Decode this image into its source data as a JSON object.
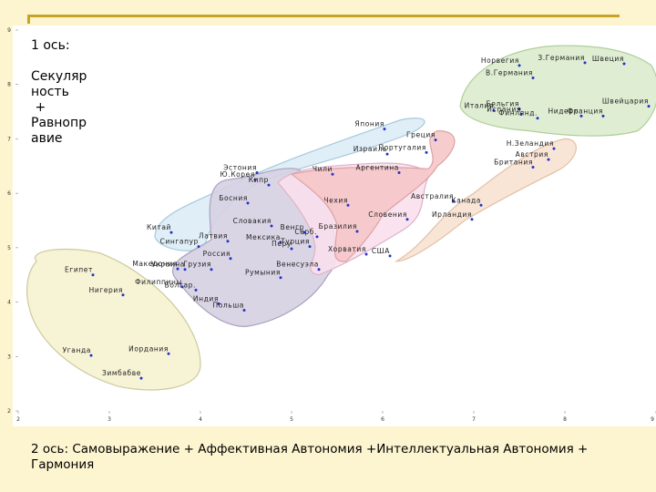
{
  "ylabel_text": "1 ось:\n\nСекуляр\nность\n +\nРавнопр\nавие",
  "xlabel_text": "2 ось: Самовыражение + Аффективная Автономия +Интеллектуальная Автономия + Гармония",
  "chart_data": {
    "type": "scatter",
    "xlim": [
      2,
      9
    ],
    "ylim": [
      2,
      9
    ],
    "xticks": [
      "2",
      "3",
      "4",
      "5",
      "6",
      "7",
      "8",
      "9"
    ],
    "yticks": [
      "2",
      "3",
      "4",
      "5",
      "6",
      "7",
      "8",
      "9"
    ],
    "grid": false,
    "point_color": "#2233cc",
    "points": [
      {
        "label": "Египет",
        "x": 2.82,
        "y": 4.5
      },
      {
        "label": "Нигерия",
        "x": 3.15,
        "y": 4.13
      },
      {
        "label": "Уганда",
        "x": 2.8,
        "y": 3.02
      },
      {
        "label": "Иордания",
        "x": 3.65,
        "y": 3.05
      },
      {
        "label": "Зимбабве",
        "x": 3.35,
        "y": 2.6
      },
      {
        "label": "Китай",
        "x": 3.68,
        "y": 5.28
      },
      {
        "label": "Сингапур",
        "x": 3.98,
        "y": 5.02
      },
      {
        "label": "Македония",
        "x": 3.75,
        "y": 4.61
      },
      {
        "label": "Украина",
        "x": 3.83,
        "y": 4.6
      },
      {
        "label": "Грузия",
        "x": 4.12,
        "y": 4.6
      },
      {
        "label": "Филиппины",
        "x": 3.8,
        "y": 4.28
      },
      {
        "label": "Болгар.",
        "x": 3.95,
        "y": 4.22
      },
      {
        "label": "Индия",
        "x": 4.2,
        "y": 3.97
      },
      {
        "label": "Польша",
        "x": 4.48,
        "y": 3.85
      },
      {
        "label": "Латвия",
        "x": 4.3,
        "y": 5.12
      },
      {
        "label": "Россия",
        "x": 4.33,
        "y": 4.8
      },
      {
        "label": "Эстония",
        "x": 4.62,
        "y": 6.38
      },
      {
        "label": "Ю.Корея",
        "x": 4.6,
        "y": 6.25
      },
      {
        "label": "Кипр",
        "x": 4.75,
        "y": 6.15
      },
      {
        "label": "Босния",
        "x": 4.52,
        "y": 5.82
      },
      {
        "label": "Словакия",
        "x": 4.78,
        "y": 5.4
      },
      {
        "label": "Венгр",
        "x": 5.14,
        "y": 5.28
      },
      {
        "label": "Серб.",
        "x": 5.28,
        "y": 5.2
      },
      {
        "label": "Мексика",
        "x": 4.88,
        "y": 5.1
      },
      {
        "label": "Турция",
        "x": 5.2,
        "y": 5.02
      },
      {
        "label": "Перу",
        "x": 5.0,
        "y": 4.98
      },
      {
        "label": "Румыния",
        "x": 4.88,
        "y": 4.45
      },
      {
        "label": "Венесуэла",
        "x": 5.3,
        "y": 4.6
      },
      {
        "label": "Чили",
        "x": 5.45,
        "y": 6.35
      },
      {
        "label": "Чехия",
        "x": 5.62,
        "y": 5.78
      },
      {
        "label": "Бразилия",
        "x": 5.72,
        "y": 5.3
      },
      {
        "label": "Хорватия",
        "x": 5.82,
        "y": 4.88
      },
      {
        "label": "США",
        "x": 6.08,
        "y": 4.85
      },
      {
        "label": "Словения",
        "x": 6.27,
        "y": 5.52
      },
      {
        "label": "Аргентина",
        "x": 6.18,
        "y": 6.38
      },
      {
        "label": "Израиль",
        "x": 6.05,
        "y": 6.72
      },
      {
        "label": "Япония",
        "x": 6.02,
        "y": 7.18
      },
      {
        "label": "Греция",
        "x": 6.58,
        "y": 6.98
      },
      {
        "label": "Португалия",
        "x": 6.48,
        "y": 6.75
      },
      {
        "label": "Австралия",
        "x": 6.78,
        "y": 5.85
      },
      {
        "label": "Канада",
        "x": 7.08,
        "y": 5.78
      },
      {
        "label": "Ирландия",
        "x": 6.98,
        "y": 5.52
      },
      {
        "label": "Н.Зеландия",
        "x": 7.88,
        "y": 6.82
      },
      {
        "label": "Австрия",
        "x": 7.82,
        "y": 6.62
      },
      {
        "label": "Британия",
        "x": 7.65,
        "y": 6.48
      },
      {
        "label": "Италия",
        "x": 7.22,
        "y": 7.52
      },
      {
        "label": "Бельгия",
        "x": 7.5,
        "y": 7.55
      },
      {
        "label": "Испания",
        "x": 7.52,
        "y": 7.45
      },
      {
        "label": "Финлянд.",
        "x": 7.7,
        "y": 7.38
      },
      {
        "label": "Нидерл.",
        "x": 8.18,
        "y": 7.42
      },
      {
        "label": "Франция",
        "x": 8.42,
        "y": 7.42
      },
      {
        "label": "Швейцария",
        "x": 8.92,
        "y": 7.6
      },
      {
        "label": "Норвегия",
        "x": 7.5,
        "y": 8.35
      },
      {
        "label": "В.Германия",
        "x": 7.65,
        "y": 8.12
      },
      {
        "label": "З.Германия",
        "x": 8.22,
        "y": 8.4
      },
      {
        "label": "Швеция",
        "x": 8.65,
        "y": 8.38
      }
    ],
    "clusters": [
      {
        "name": "african-cluster",
        "fill": "#f6f2d0",
        "stroke": "#ccc9a0"
      },
      {
        "name": "east-asian-cluster",
        "fill": "#dcecf6",
        "stroke": "#a7c9dc"
      },
      {
        "name": "east-european-cluster",
        "fill": "#d6d0e2",
        "stroke": "#aaa2bd"
      },
      {
        "name": "latin-american-cluster",
        "fill": "#f9dfec",
        "stroke": "#ddb2c9"
      },
      {
        "name": "catholic-cluster",
        "fill": "#f5c6c8",
        "stroke": "#dda2a4"
      },
      {
        "name": "english-speaking-cluster",
        "fill": "#f8e2d2",
        "stroke": "#e1c0a6"
      },
      {
        "name": "west-european-cluster",
        "fill": "#dcecce",
        "stroke": "#afcf98"
      }
    ]
  }
}
